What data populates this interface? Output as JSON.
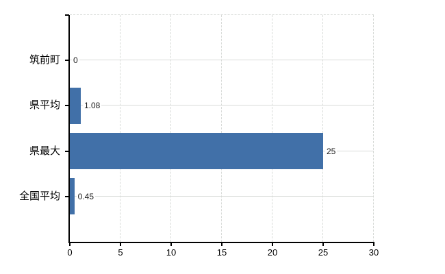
{
  "chart_data": {
    "type": "bar",
    "orientation": "horizontal",
    "categories": [
      "筑前町",
      "県平均",
      "県最大",
      "全国平均"
    ],
    "values": [
      0,
      1.08,
      25,
      0.45
    ],
    "value_labels": [
      "0",
      "1.08",
      "25",
      "0.45"
    ],
    "xlim": [
      0,
      30
    ],
    "x_ticks": [
      0,
      5,
      10,
      15,
      20,
      25,
      30
    ],
    "x_tick_labels": [
      "0",
      "5",
      "10",
      "15",
      "20",
      "25",
      "30"
    ],
    "legend": "none",
    "grid": {
      "vertical_style": "dashed",
      "horizontal_style": "solid",
      "top_border_style": "dashed"
    },
    "colors": {
      "bar": "#4170a8",
      "axis": "#000000",
      "grid": "#d7dad7",
      "category_text": "#000000",
      "tick_text": "#000000",
      "value_text": "#1a1a1a",
      "background": "#ffffff"
    }
  }
}
